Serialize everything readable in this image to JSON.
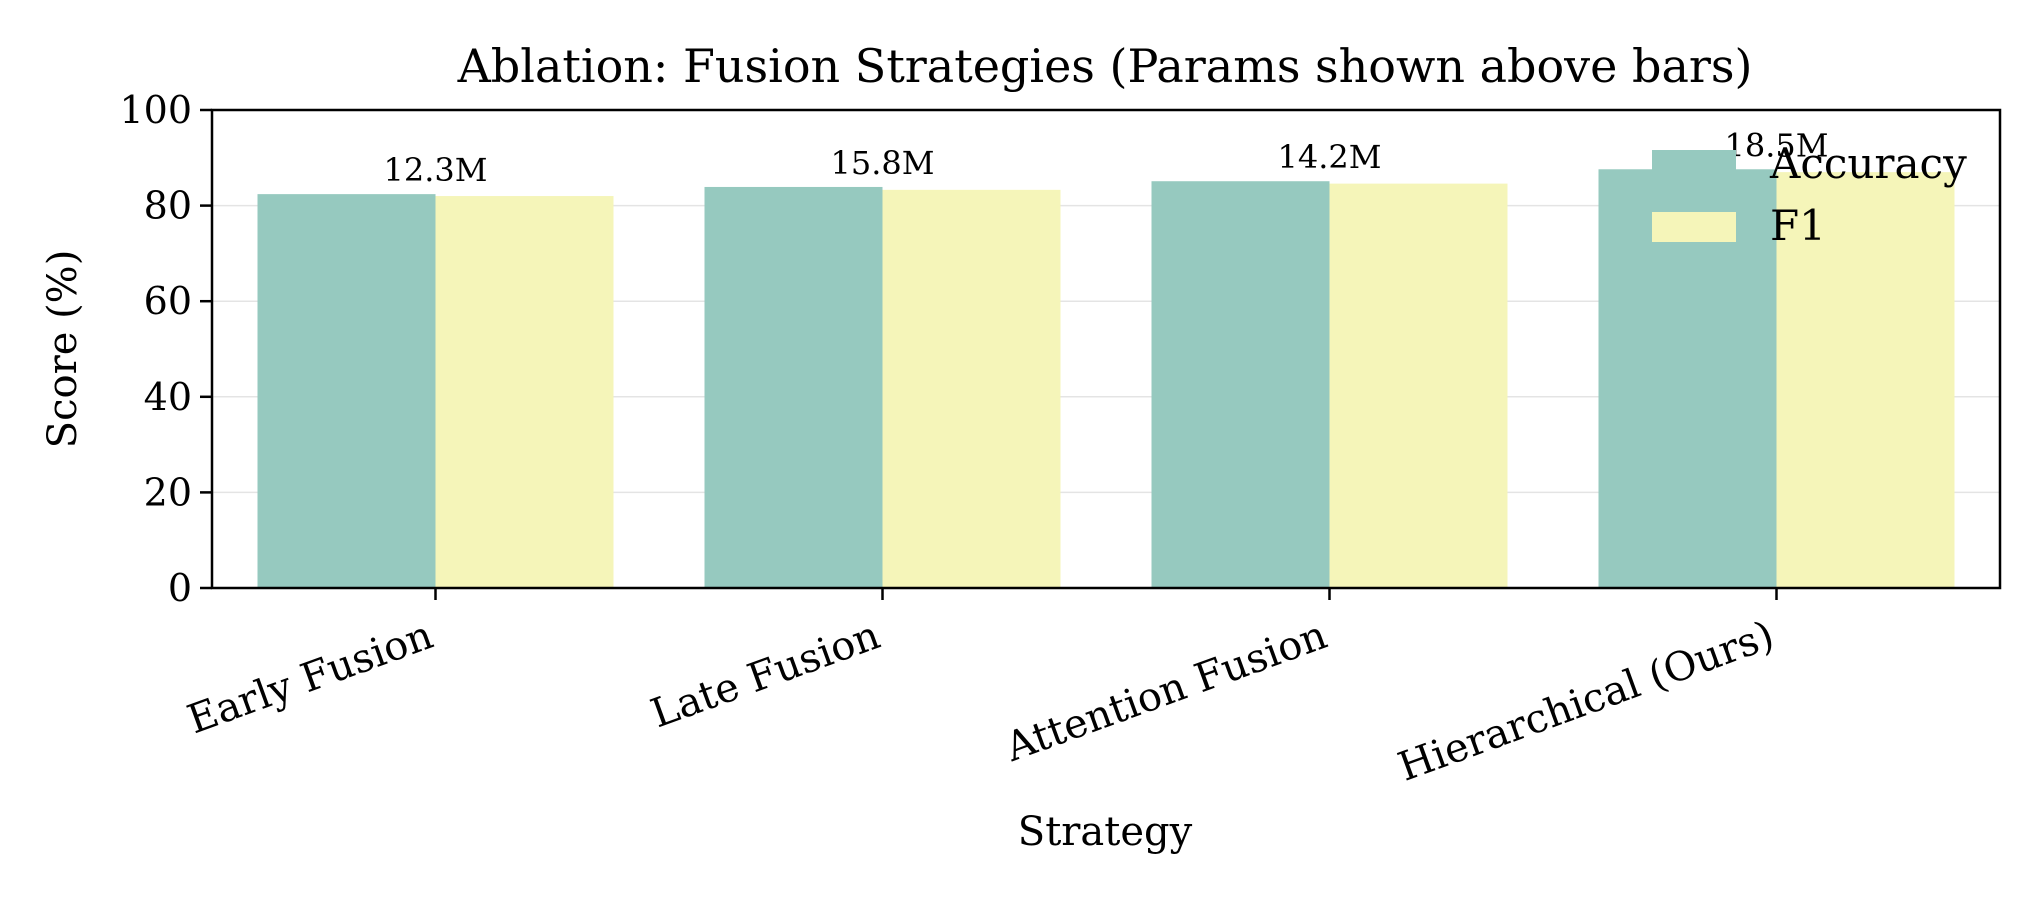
{
  "chart_data": {
    "type": "bar",
    "title": "Ablation: Fusion Strategies (Params shown above bars)",
    "xlabel": "Strategy",
    "ylabel": "Score (%)",
    "ylim": [
      0,
      100
    ],
    "yticks": [
      "0",
      "20",
      "40",
      "60",
      "80",
      "100"
    ],
    "categories": [
      "Early Fusion",
      "Late Fusion",
      "Attention Fusion",
      "Hierarchical (Ours)"
    ],
    "series": [
      {
        "name": "Accuracy",
        "values": [
          82.4,
          83.9,
          85.1,
          87.6
        ],
        "color": "#96c9bf"
      },
      {
        "name": "F1",
        "values": [
          82.0,
          83.3,
          84.6,
          87.0
        ],
        "color": "#f5f5b9"
      }
    ],
    "params": [
      "12.3M",
      "15.8M",
      "14.2M",
      "18.5M"
    ],
    "grid": "horizontal",
    "legend_position": "top-right"
  }
}
